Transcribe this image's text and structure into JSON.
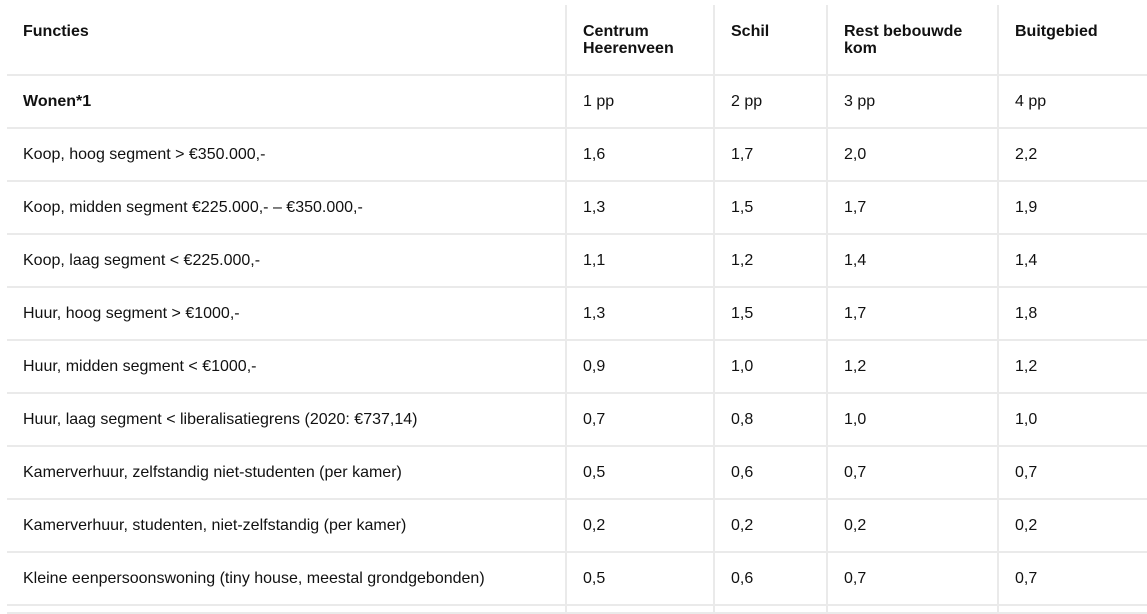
{
  "table": {
    "headers": [
      "Functies",
      "Centrum Heerenveen",
      "Schil",
      "Rest bebouwde kom",
      "Buitgebied"
    ],
    "rows": [
      {
        "label": "Wonen*1",
        "bold": true,
        "values": [
          "1 pp",
          "2 pp",
          "3 pp",
          "4 pp"
        ]
      },
      {
        "label": "Koop, hoog segment > €350.000,-",
        "values": [
          "1,6",
          "1,7",
          "2,0",
          "2,2"
        ]
      },
      {
        "label": "Koop, midden segment €225.000,- – €350.000,-",
        "values": [
          "1,3",
          "1,5",
          "1,7",
          "1,9"
        ]
      },
      {
        "label": "Koop, laag segment < €225.000,-",
        "values": [
          "1,1",
          "1,2",
          "1,4",
          "1,4"
        ]
      },
      {
        "label": "Huur, hoog segment > €1000,-",
        "values": [
          "1,3",
          "1,5",
          "1,7",
          "1,8"
        ]
      },
      {
        "label": "Huur, midden segment < €1000,-",
        "values": [
          "0,9",
          "1,0",
          "1,2",
          "1,2"
        ]
      },
      {
        "label": "Huur, laag segment < liberalisatiegrens (2020: €737,14)",
        "values": [
          "0,7",
          "0,8",
          "1,0",
          "1,0"
        ]
      },
      {
        "label": "Kamerverhuur, zelfstandig niet-studenten (per kamer)",
        "values": [
          "0,5",
          "0,6",
          "0,7",
          "0,7"
        ]
      },
      {
        "label": "Kamerverhuur, studenten, niet-zelfstandig (per kamer)",
        "values": [
          "0,2",
          "0,2",
          "0,2",
          "0,2"
        ]
      },
      {
        "label": "Kleine eenpersoonswoning (tiny house, meestal grondgebonden)",
        "values": [
          "0,5",
          "0,6",
          "0,7",
          "0,7"
        ]
      }
    ]
  }
}
